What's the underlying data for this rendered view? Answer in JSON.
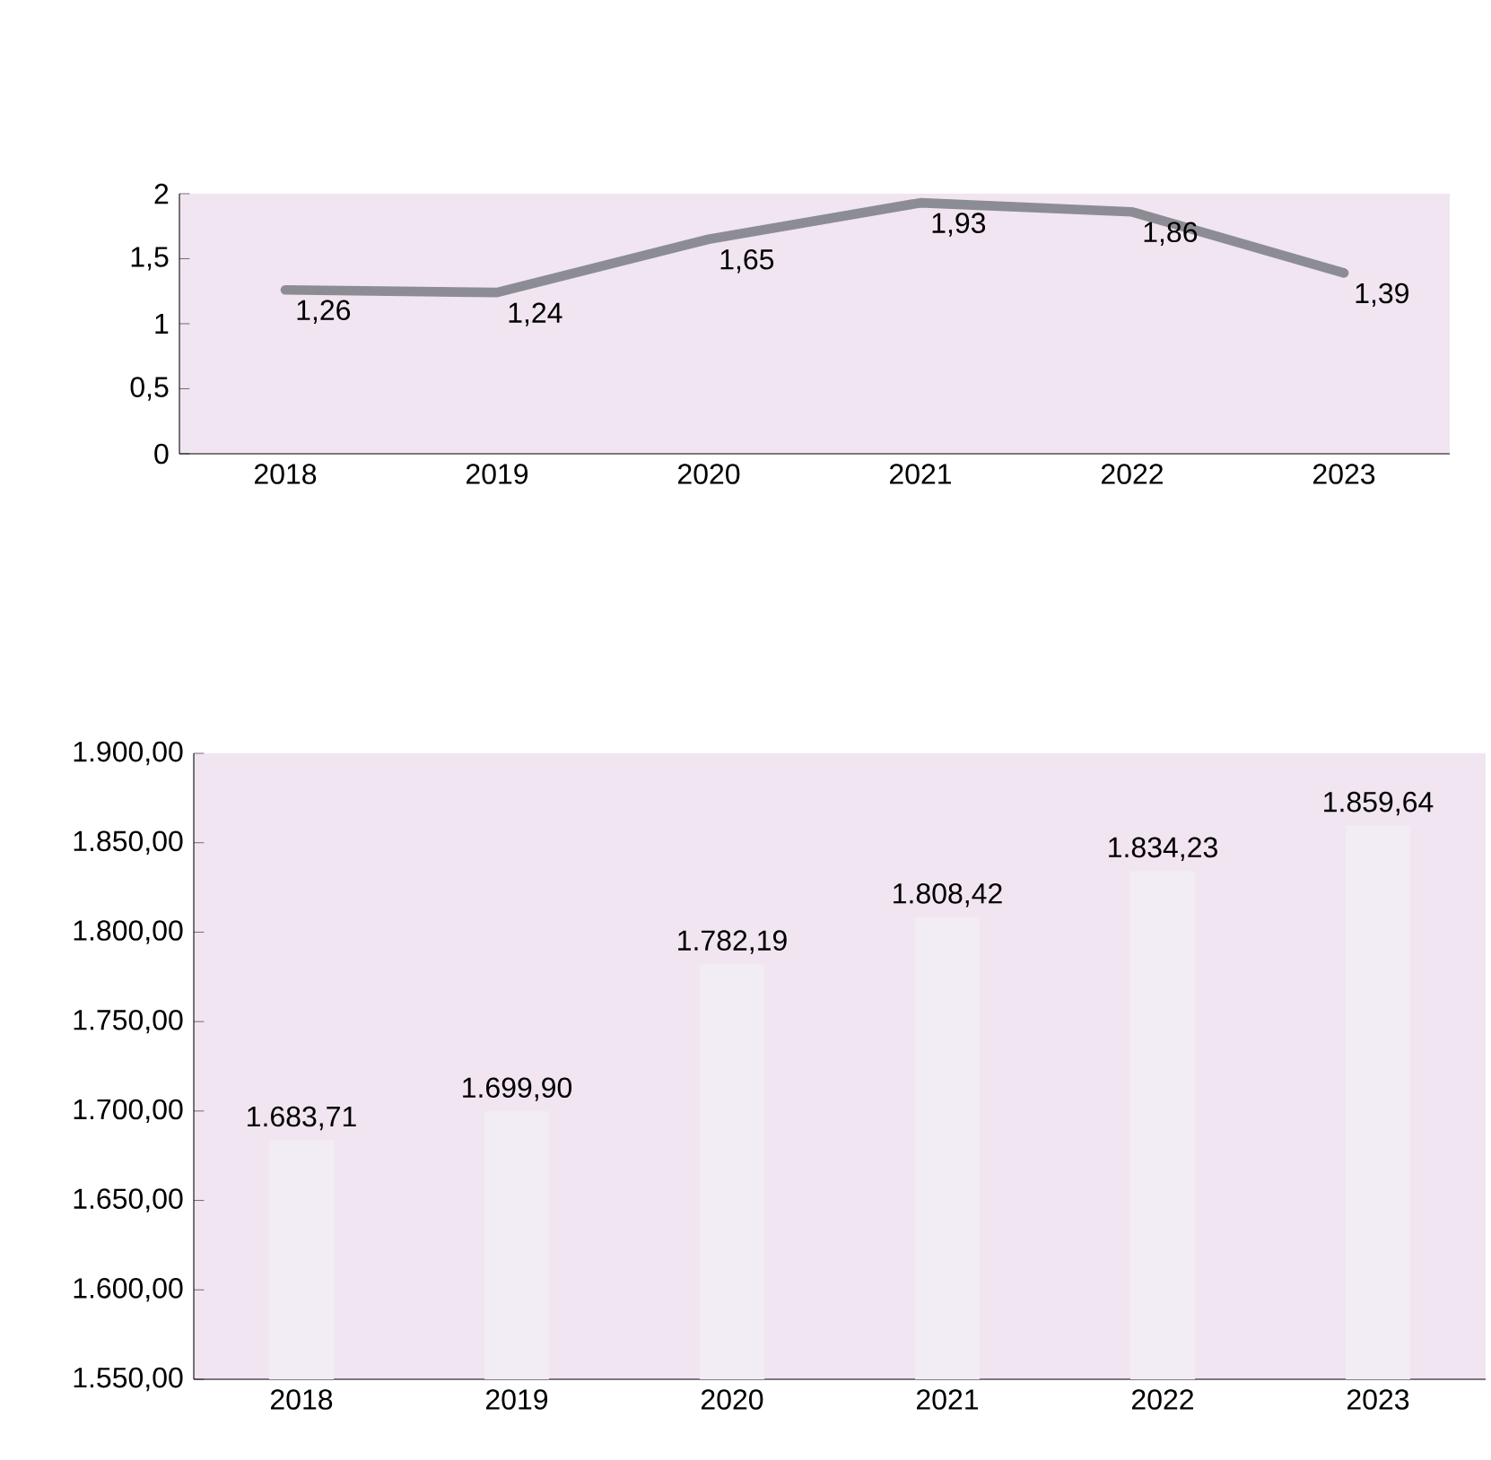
{
  "chart_data": [
    {
      "type": "line",
      "categories": [
        "2018",
        "2019",
        "2020",
        "2021",
        "2022",
        "2023"
      ],
      "values": [
        1.26,
        1.24,
        1.65,
        1.93,
        1.86,
        1.39
      ],
      "value_labels": [
        "1,26",
        "1,24",
        "1,65",
        "1,93",
        "1,86",
        "1,39"
      ],
      "color": "#8c8c94",
      "ylim": [
        0,
        2
      ],
      "yticks": [
        0,
        {
          "value": 0.5,
          "label": "0,5"
        },
        1,
        {
          "value": 1.5,
          "label": "1,5"
        },
        2
      ]
    },
    {
      "type": "bar",
      "categories": [
        "2018",
        "2019",
        "2020",
        "2021",
        "2022",
        "2023"
      ],
      "values": [
        1683.71,
        1699.9,
        1782.19,
        1808.42,
        1834.23,
        1859.64
      ],
      "value_labels": [
        "1.683,71",
        "1.699,90",
        "1.782,19",
        "1.808,42",
        "1.834,23",
        "1.859,64"
      ],
      "color": "#f2ecf4",
      "ylim": [
        1550,
        1900
      ],
      "yticks": [
        {
          "value": 1550,
          "label": "1.550,00"
        },
        {
          "value": 1600,
          "label": "1.600,00"
        },
        {
          "value": 1650,
          "label": "1.650,00"
        },
        {
          "value": 1700,
          "label": "1.700,00"
        },
        {
          "value": 1750,
          "label": "1.750,00"
        },
        {
          "value": 1800,
          "label": "1.800,00"
        },
        {
          "value": 1850,
          "label": "1.850,00"
        },
        {
          "value": 1900,
          "label": "1.900,00"
        }
      ]
    }
  ]
}
